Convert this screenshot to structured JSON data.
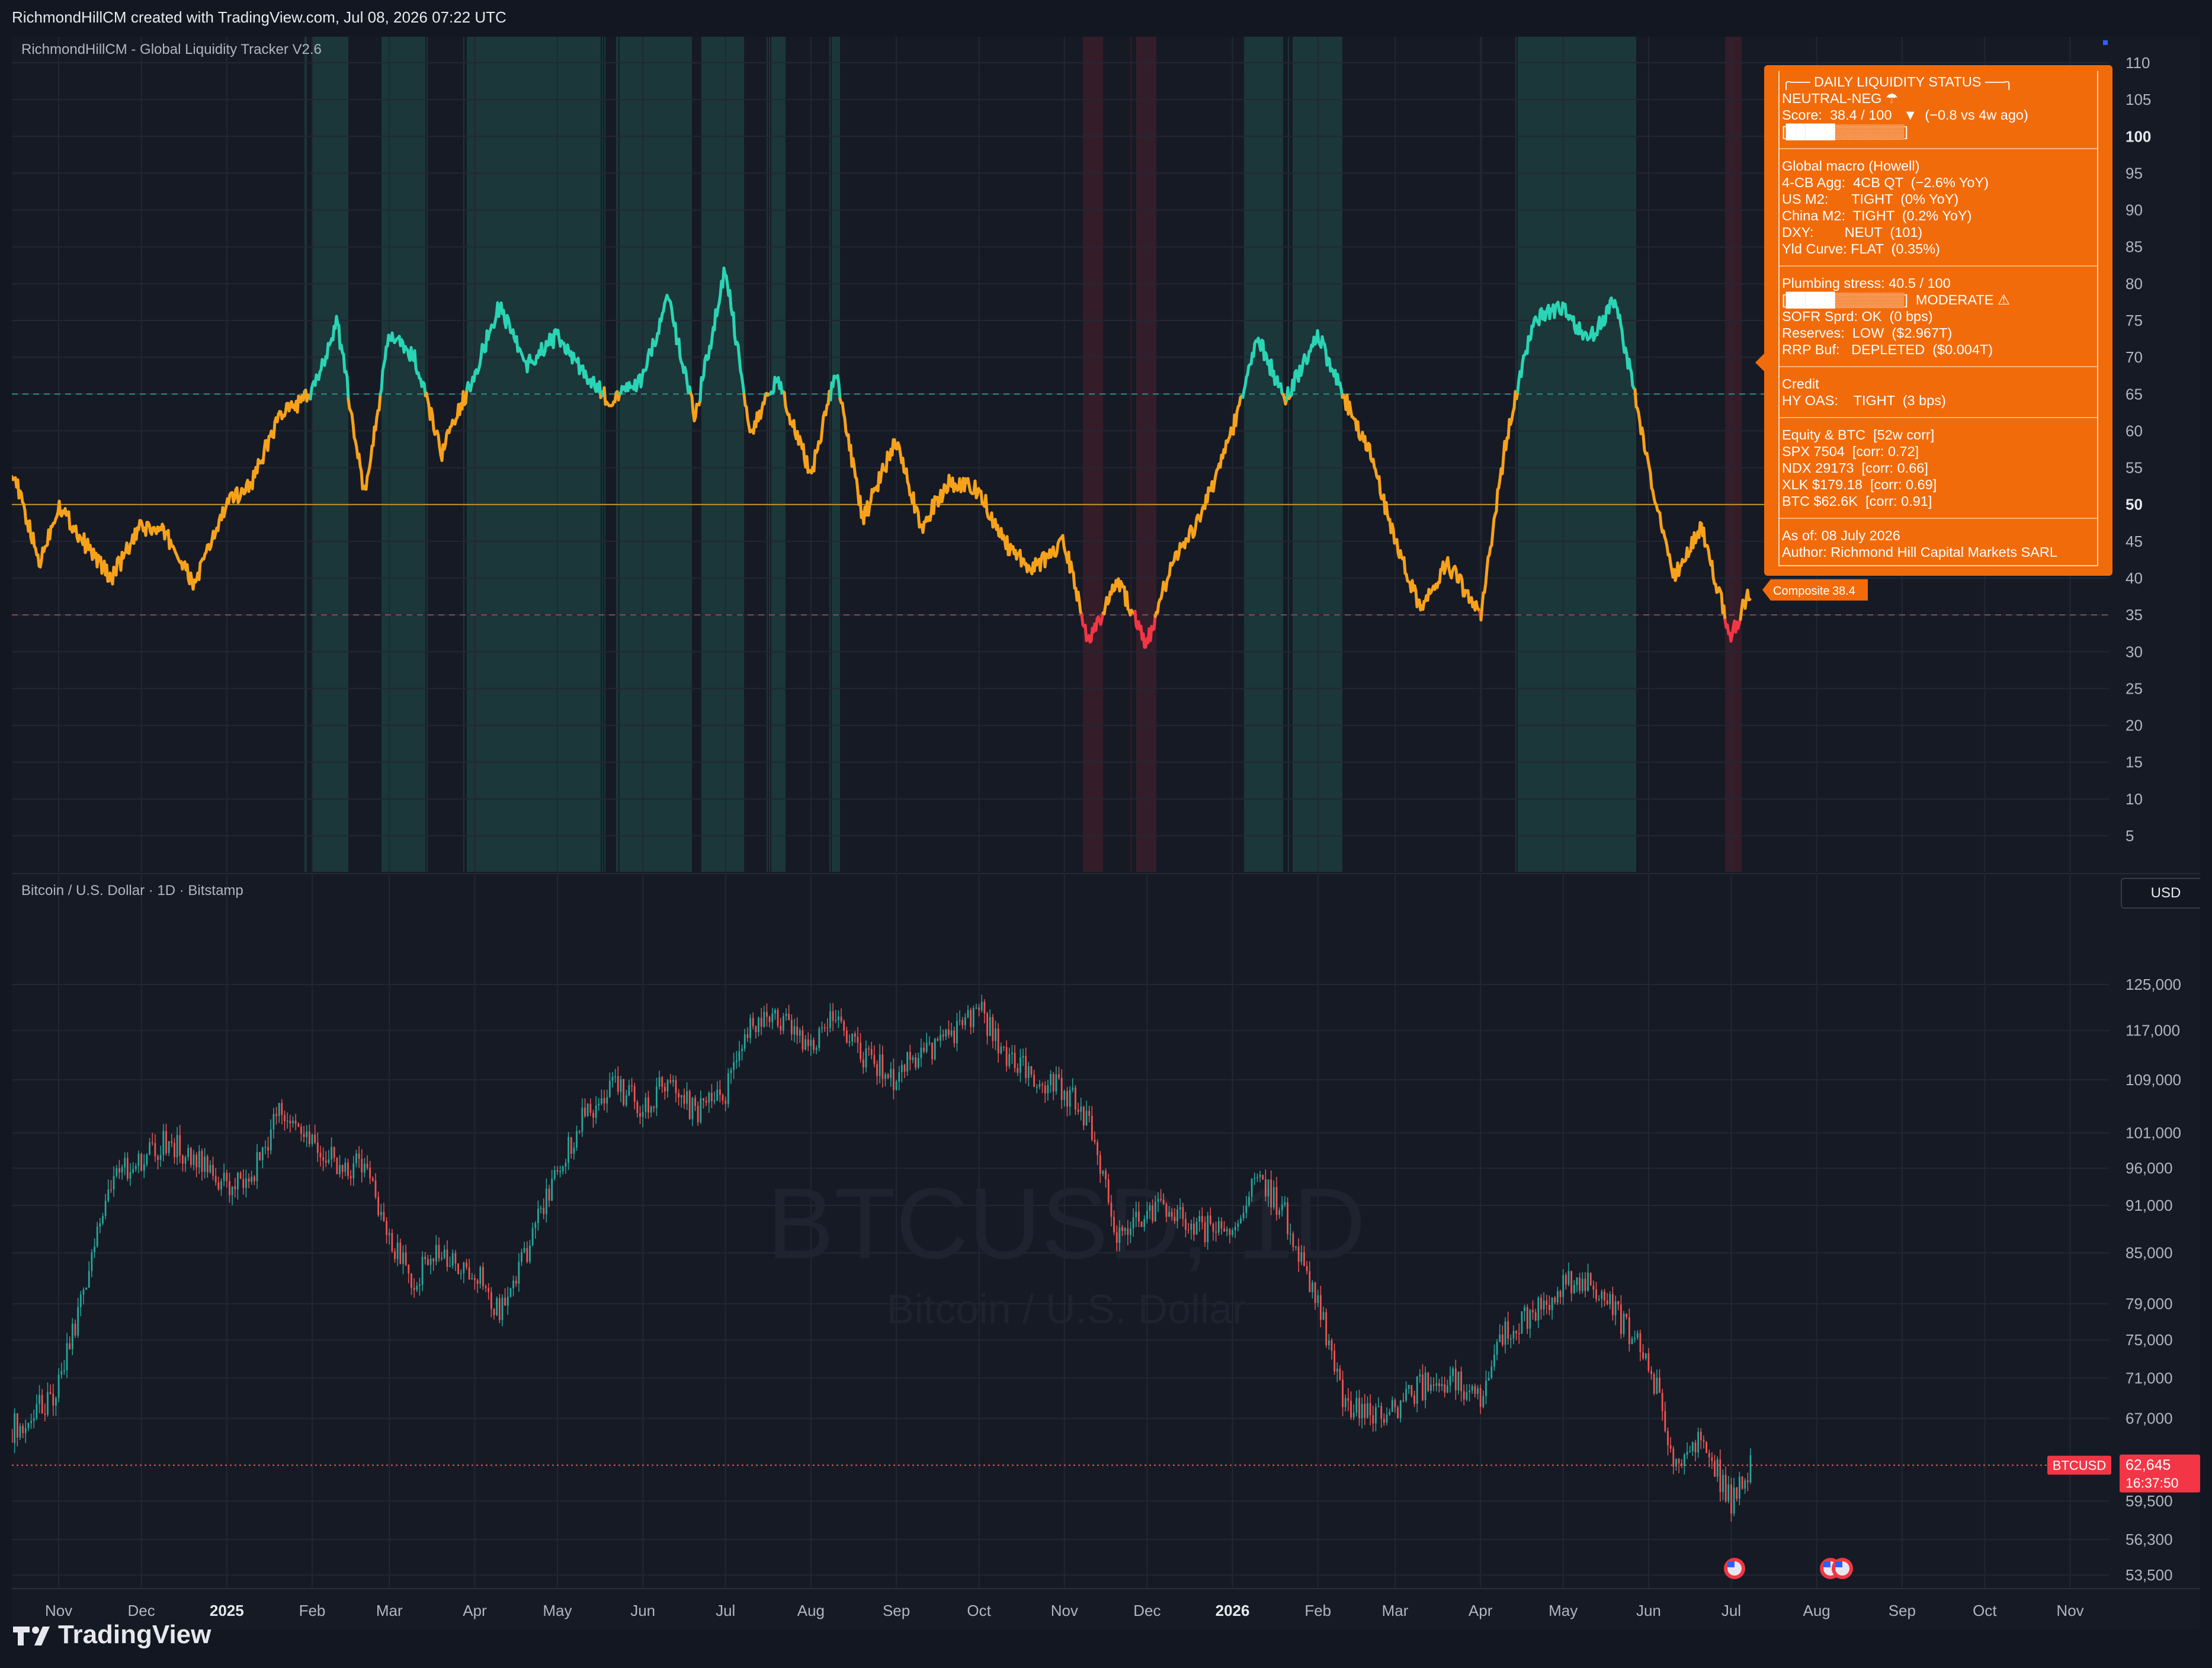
{
  "header": {
    "attribution": "RichmondHillCM created with TradingView.com, Jul 08, 2026 07:22 UTC"
  },
  "footer": {
    "brand": "TradingView"
  },
  "liquidity_pane": {
    "title": "RichmondHillCM - Global Liquidity Tracker V2.6",
    "composite_label": "Composite",
    "composite_value": "38.4",
    "y_ticks": [
      110,
      105,
      100,
      95,
      90,
      85,
      80,
      75,
      70,
      65,
      60,
      55,
      50,
      45,
      40,
      35,
      30,
      25,
      20,
      15,
      10,
      5
    ],
    "bold_ticks": [
      100,
      50
    ],
    "ref_lines": {
      "upper": 65,
      "mid": 50,
      "lower": 35
    },
    "colors": {
      "high": "#2ad4b4",
      "mid": "#f7a21b",
      "low": "#f23645",
      "high_zone": "#1c3d3d",
      "low_zone": "#3a1f2a",
      "midline": "#c8952c"
    }
  },
  "status_panel": {
    "lines_1": [
      "╭── DAILY LIQUIDITY STATUS ──╮",
      "NEUTRAL-NEG ☂",
      "Score:  38.4 / 100   ▼  (−0.8 vs 4w ago)",
      "[█████▒▒▒▒▒▒▒]"
    ],
    "lines_2": [
      "Global macro (Howell)",
      "4-CB Agg:  4CB QT  (−2.6% YoY)",
      "US M2:      TIGHT  (0% YoY)",
      "China M2:  TIGHT  (0.2% YoY)",
      "DXY:        NEUT  (101)",
      "Yld Curve: FLAT  (0.35%)"
    ],
    "lines_3": [
      "Plumbing stress: 40.5 / 100",
      "[█████▒▒▒▒▒▒▒]  MODERATE ⚠",
      "SOFR Sprd: OK  (0 bps)",
      "Reserves:  LOW  ($2.967T)",
      "RRP Buf:   DEPLETED  ($0.004T)"
    ],
    "lines_4": [
      "Credit",
      "HY OAS:    TIGHT  (3 bps)"
    ],
    "lines_5": [
      "Equity & BTC  [52w corr]",
      "SPX 7504  [corr: 0.72]",
      "NDX 29173  [corr: 0.66]",
      "XLK $179.18  [corr: 0.69]",
      "BTC $62.6K  [corr: 0.91]"
    ],
    "lines_6": [
      "As of: 08 July 2026",
      "Author: Richmond Hill Capital Markets SARL"
    ]
  },
  "btc_pane": {
    "title": "Bitcoin / U.S. Dollar · 1D · Bitstamp",
    "currency": "USD",
    "watermark_symbol": "BTCUSD, 1D",
    "watermark_name": "Bitcoin / U.S. Dollar",
    "price_ticks": [
      "125,000",
      "117,000",
      "109,000",
      "101,000",
      "96,000",
      "91,000",
      "85,000",
      "79,000",
      "75,000",
      "71,000",
      "67,000",
      "59,500",
      "56,300",
      "53,500"
    ],
    "price_tick_values": [
      125000,
      117000,
      109000,
      101000,
      96000,
      91000,
      85000,
      79000,
      75000,
      71000,
      67000,
      59500,
      56300,
      53500
    ],
    "last_symbol": "BTCUSD",
    "last_price": "62,645",
    "countdown": "16:37:50",
    "colors": {
      "up": "#26a69a",
      "down": "#ef5350"
    }
  },
  "time_axis": {
    "labels": [
      "Nov",
      "Dec",
      "2025",
      "Feb",
      "Mar",
      "Apr",
      "May",
      "Jun",
      "Jul",
      "Aug",
      "Sep",
      "Oct",
      "Nov",
      "Dec",
      "2026",
      "Feb",
      "Mar",
      "Apr",
      "May",
      "Jun",
      "Jul",
      "Aug",
      "Sep",
      "Oct",
      "Nov"
    ],
    "bold": [
      "2025",
      "2026"
    ]
  },
  "chart_data": [
    {
      "type": "line",
      "title": "RichmondHillCM - Global Liquidity Tracker V2.6",
      "series": [
        {
          "name": "Composite",
          "x": [
            "2024-10-15",
            "2024-10-25",
            "2024-11-01",
            "2024-11-10",
            "2024-11-20",
            "2024-12-01",
            "2024-12-10",
            "2024-12-20",
            "2025-01-01",
            "2025-01-10",
            "2025-01-20",
            "2025-02-01",
            "2025-02-10",
            "2025-02-20",
            "2025-03-01",
            "2025-03-10",
            "2025-03-20",
            "2025-04-01",
            "2025-04-10",
            "2025-04-20",
            "2025-05-01",
            "2025-05-10",
            "2025-05-20",
            "2025-06-01",
            "2025-06-10",
            "2025-06-20",
            "2025-07-01",
            "2025-07-10",
            "2025-07-20",
            "2025-08-01",
            "2025-08-10",
            "2025-08-20",
            "2025-09-01",
            "2025-09-10",
            "2025-09-20",
            "2025-10-01",
            "2025-10-10",
            "2025-10-20",
            "2025-11-01",
            "2025-11-10",
            "2025-11-20",
            "2025-12-01",
            "2025-12-10",
            "2025-12-20",
            "2026-01-01",
            "2026-01-10",
            "2026-01-20",
            "2026-02-01",
            "2026-02-10",
            "2026-02-20",
            "2026-03-01",
            "2026-03-10",
            "2026-03-20",
            "2026-04-01",
            "2026-04-10",
            "2026-04-20",
            "2026-05-01",
            "2026-05-10",
            "2026-05-20",
            "2026-06-01",
            "2026-06-10",
            "2026-06-20",
            "2026-07-01",
            "2026-07-08"
          ],
          "values": [
            55,
            42,
            50,
            45,
            40,
            47,
            46,
            39,
            50,
            53,
            62,
            65,
            75,
            51,
            73,
            70,
            57,
            68,
            77,
            69,
            73,
            68,
            64,
            67,
            78,
            62,
            82,
            60,
            67,
            54,
            68,
            48,
            59,
            47,
            53,
            52,
            45,
            41,
            45,
            31,
            40,
            31,
            42,
            48,
            60,
            73,
            64,
            73,
            65,
            57,
            45,
            36,
            42,
            35,
            58,
            75,
            77,
            72,
            78,
            55,
            40,
            47,
            32,
            38.4
          ]
        }
      ],
      "ylim": [
        0,
        112
      ],
      "reference_lines": [
        65,
        50,
        35
      ]
    },
    {
      "type": "candlestick",
      "title": "Bitcoin / U.S. Dollar · 1D · Bitstamp",
      "series": [
        {
          "name": "BTCUSD",
          "x": [
            "2024-10-15",
            "2024-10-25",
            "2024-11-01",
            "2024-11-10",
            "2024-11-20",
            "2024-12-01",
            "2024-12-10",
            "2024-12-20",
            "2025-01-01",
            "2025-01-10",
            "2025-01-20",
            "2025-02-01",
            "2025-02-10",
            "2025-02-20",
            "2025-03-01",
            "2025-03-10",
            "2025-03-20",
            "2025-04-01",
            "2025-04-10",
            "2025-04-20",
            "2025-05-01",
            "2025-05-10",
            "2025-05-20",
            "2025-06-01",
            "2025-06-10",
            "2025-06-20",
            "2025-07-01",
            "2025-07-10",
            "2025-07-20",
            "2025-08-01",
            "2025-08-10",
            "2025-08-20",
            "2025-09-01",
            "2025-09-10",
            "2025-09-20",
            "2025-10-01",
            "2025-10-10",
            "2025-10-20",
            "2025-11-01",
            "2025-11-10",
            "2025-11-20",
            "2025-12-01",
            "2025-12-10",
            "2025-12-20",
            "2026-01-01",
            "2026-01-10",
            "2026-01-20",
            "2026-02-01",
            "2026-02-10",
            "2026-02-20",
            "2026-03-01",
            "2026-03-10",
            "2026-03-20",
            "2026-04-01",
            "2026-04-10",
            "2026-04-20",
            "2026-05-01",
            "2026-05-10",
            "2026-05-20",
            "2026-06-01",
            "2026-06-10",
            "2026-06-20",
            "2026-07-01",
            "2026-07-08"
          ],
          "values": [
            66000,
            68000,
            70000,
            80000,
            95000,
            97000,
            100000,
            97000,
            94000,
            95000,
            104000,
            100000,
            97000,
            96000,
            86000,
            82000,
            85000,
            83000,
            78000,
            85000,
            96000,
            103000,
            108000,
            105000,
            109000,
            104000,
            107000,
            117000,
            119000,
            115000,
            119000,
            113000,
            109000,
            114000,
            115000,
            121000,
            113000,
            110000,
            107000,
            103000,
            87000,
            90000,
            91000,
            88000,
            88000,
            95000,
            90000,
            79000,
            69000,
            67000,
            68000,
            70000,
            71000,
            69000,
            76000,
            78000,
            81000,
            82000,
            78000,
            73000,
            63000,
            65000,
            59500,
            62645
          ]
        }
      ],
      "ylim": [
        53500,
        128000
      ]
    }
  ]
}
